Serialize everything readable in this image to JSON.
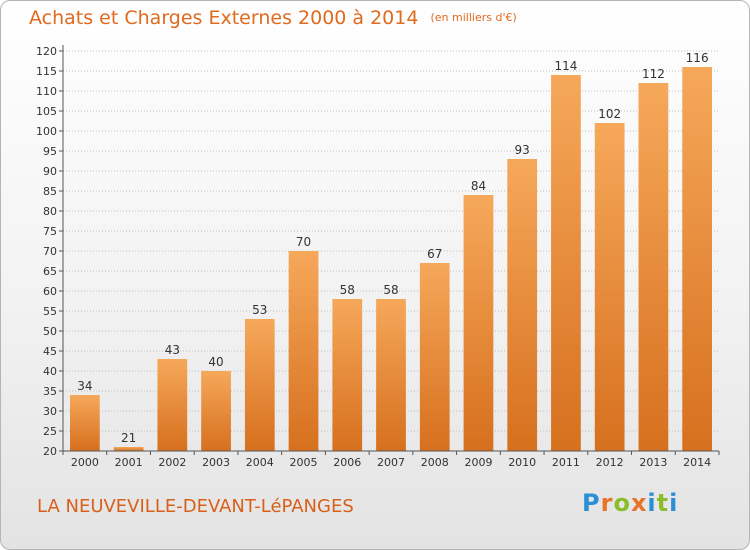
{
  "header": {
    "title": "Achats et Charges Externes 2000 à 2014",
    "unit": "(en milliers d'€)"
  },
  "footer": {
    "commune": "LA NEUVEVILLE-DEVANT-LéPANGES",
    "logo_letters": [
      "P",
      "r",
      "o",
      "x",
      "i",
      "t",
      "i"
    ],
    "logo_colors": [
      "#2b8fd6",
      "#e8732a",
      "#8bbd2b",
      "#e8732a",
      "#2b8fd6",
      "#8bbd2b",
      "#2b8fd6"
    ]
  },
  "colors": {
    "bar_light": "#f6a85a",
    "bar_dark": "#d6701e",
    "text_accent": "#e06a1d",
    "axis": "#555555",
    "grid": "#bfbfbf"
  },
  "chart_data": {
    "type": "bar",
    "categories": [
      "2000",
      "2001",
      "2002",
      "2003",
      "2004",
      "2005",
      "2006",
      "2007",
      "2008",
      "2009",
      "2010",
      "2011",
      "2012",
      "2013",
      "2014"
    ],
    "values": [
      34,
      21,
      43,
      40,
      53,
      70,
      58,
      58,
      67,
      84,
      93,
      114,
      102,
      112,
      116
    ],
    "title": "Achats et Charges Externes 2000 à 2014",
    "ylim": [
      20,
      120
    ],
    "ytick_step": 5,
    "grid": true,
    "data_labels": true
  }
}
